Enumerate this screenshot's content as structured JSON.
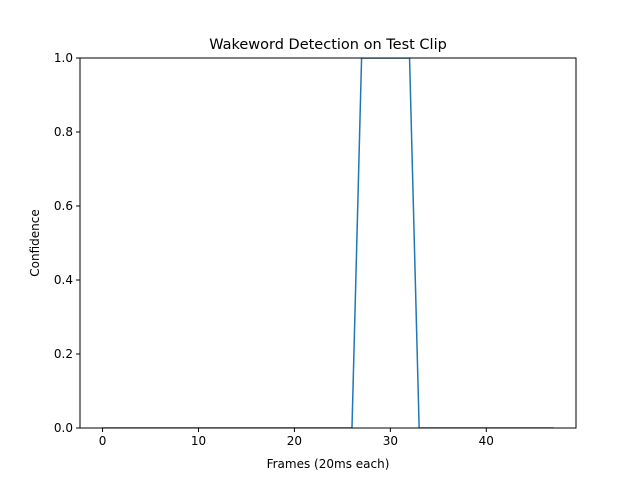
{
  "chart_data": {
    "type": "line",
    "title": "Wakeword Detection on Test Clip",
    "xlabel": "Frames (20ms each)",
    "ylabel": "Confidence",
    "xlim": [
      -2.35,
      49.35
    ],
    "ylim": [
      0,
      1
    ],
    "xticks": [
      0,
      10,
      20,
      30,
      40
    ],
    "yticks": [
      0.0,
      0.2,
      0.4,
      0.6,
      0.8,
      1.0
    ],
    "xtick_labels": [
      "0",
      "10",
      "20",
      "30",
      "40"
    ],
    "ytick_labels": [
      "0.0",
      "0.2",
      "0.4",
      "0.6",
      "0.8",
      "1.0"
    ],
    "grid": false,
    "series": [
      {
        "color": "#1f77b4",
        "x": [
          0,
          1,
          2,
          3,
          4,
          5,
          6,
          7,
          8,
          9,
          10,
          11,
          12,
          13,
          14,
          15,
          16,
          17,
          18,
          19,
          20,
          21,
          22,
          23,
          24,
          25,
          26,
          27,
          28,
          29,
          30,
          31,
          32,
          33,
          34,
          35,
          36,
          37,
          38,
          39,
          40,
          41,
          42,
          43,
          44,
          45,
          46,
          47
        ],
        "y": [
          0,
          0,
          0,
          0,
          0,
          0,
          0,
          0,
          0,
          0,
          0,
          0,
          0,
          0,
          0,
          0,
          0,
          0,
          0,
          0,
          0,
          0,
          0,
          0,
          0,
          0,
          0,
          1,
          1,
          1,
          1,
          1,
          1,
          0,
          0,
          0,
          0,
          0,
          0,
          0,
          0,
          0,
          0,
          0,
          0,
          0,
          0,
          0
        ]
      }
    ]
  }
}
